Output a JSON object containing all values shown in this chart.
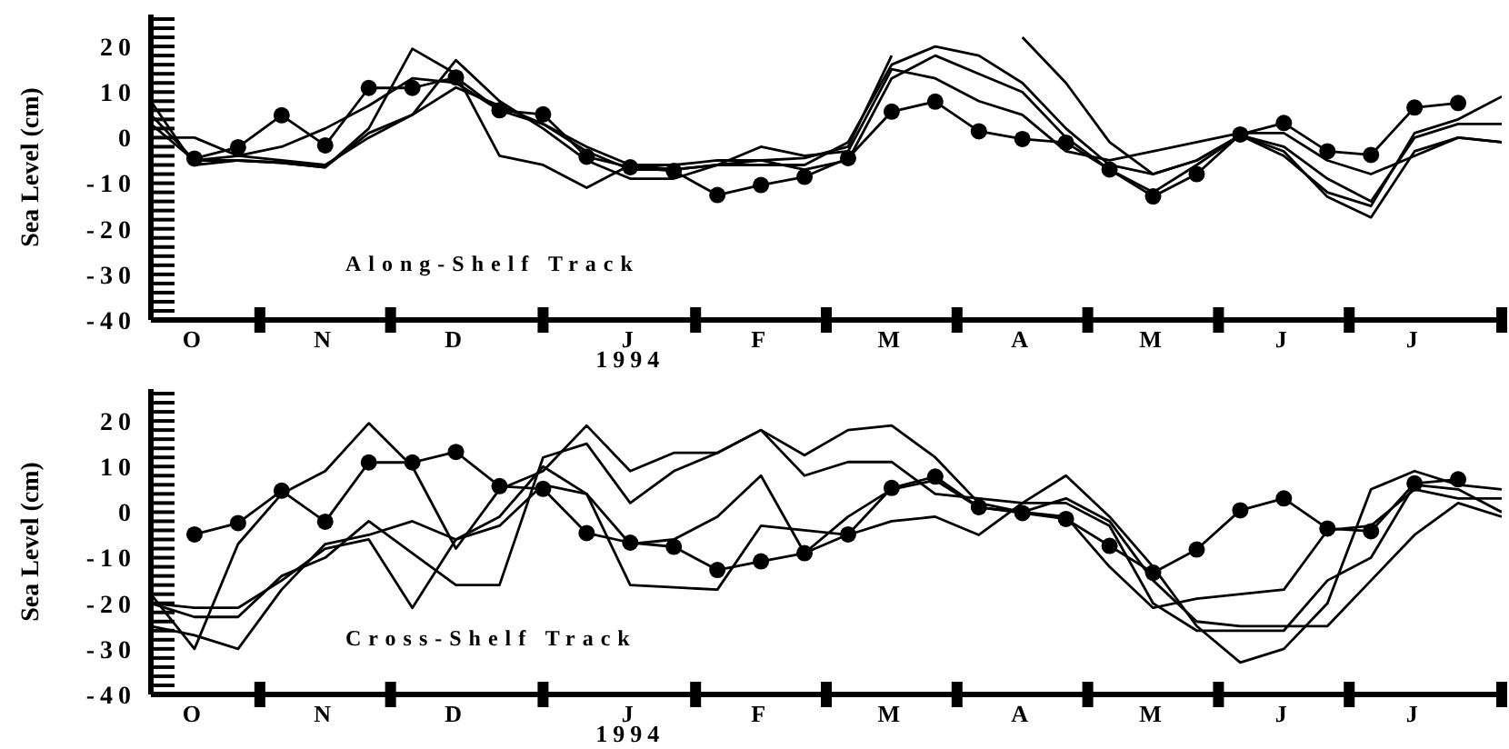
{
  "chart_data": [
    {
      "type": "line",
      "ylabel": "Sea Level (cm)",
      "annotations": [
        "Along-Shelf Track"
      ],
      "ylim": [
        -40,
        27
      ],
      "categories": [
        null,
        "O",
        null,
        null,
        "N",
        null,
        null,
        "D",
        null,
        null,
        null,
        "J\n1994",
        null,
        null,
        "F",
        null,
        null,
        "M",
        null,
        null,
        "A",
        null,
        null,
        "M",
        null,
        null,
        "J",
        null,
        null,
        "J",
        null,
        null
      ],
      "yticks": [
        -40,
        {
          "value": -38,
          "label": null
        },
        {
          "value": -36,
          "label": null
        },
        {
          "value": -34,
          "label": null
        },
        {
          "value": -32,
          "label": null
        },
        -30,
        {
          "value": -28,
          "label": null
        },
        {
          "value": -26,
          "label": null
        },
        {
          "value": -24,
          "label": null
        },
        {
          "value": -22,
          "label": null
        },
        -20,
        {
          "value": -18,
          "label": null
        },
        {
          "value": -16,
          "label": null
        },
        {
          "value": -14,
          "label": null
        },
        {
          "value": -12,
          "label": null
        },
        -10,
        {
          "value": -8,
          "label": null
        },
        {
          "value": -6,
          "label": null
        },
        {
          "value": -4,
          "label": null
        },
        {
          "value": -2,
          "label": null
        },
        0,
        {
          "value": 2,
          "label": null
        },
        {
          "value": 4,
          "label": null
        },
        {
          "value": 6,
          "label": null
        },
        {
          "value": 8,
          "label": null
        },
        10,
        {
          "value": 12,
          "label": null
        },
        {
          "value": 14,
          "label": null
        },
        {
          "value": 16,
          "label": null
        },
        {
          "value": 18,
          "label": null
        },
        20,
        {
          "value": 22,
          "label": null
        },
        {
          "value": 24,
          "label": null
        },
        {
          "value": 26,
          "label": null
        }
      ],
      "series": [
        {
          "color": "#000000",
          "marker": "circle",
          "values": [
            null,
            -4.6,
            -2.1,
            4.9,
            -1.7,
            10.9,
            10.9,
            13.2,
            6.0,
            5.1,
            -4.2,
            -6.5,
            -7.3,
            -12.6,
            -10.4,
            -8.6,
            -4.5,
            5.7,
            7.9,
            1.4,
            -0.3,
            -1.1,
            -7,
            -12.9,
            -8.0,
            0.7,
            3.2,
            -3.0,
            -3.8,
            6.6,
            7.6,
            null
          ]
        },
        {
          "color": "#000000",
          "values": [
            8,
            -6,
            -5,
            -5.5,
            -6.5,
            2,
            19.5,
            14,
            -4,
            -6,
            -11,
            -6,
            -6,
            -5,
            -5,
            -4.5,
            -2,
            18,
            null,
            null,
            22,
            12,
            -1,
            -8,
            -5,
            0.5,
            -3,
            -13,
            -17.5,
            -3,
            0,
            -1
          ]
        },
        {
          "color": "#000000",
          "values": [
            3,
            -5,
            -5,
            -5.5,
            -6.5,
            1,
            5,
            17,
            8,
            2,
            -5,
            -9,
            -9,
            -6,
            -6,
            -6,
            -1,
            16,
            20,
            18,
            12,
            2,
            -6,
            -8,
            -5,
            0.5,
            -4,
            -12,
            -15,
            1,
            4,
            9
          ]
        },
        {
          "color": "#000000",
          "values": [
            5,
            -5,
            -4,
            -2,
            2,
            7,
            13,
            12,
            6,
            3,
            -3,
            -7,
            -7,
            -6,
            -5,
            -7,
            -5,
            13,
            18,
            14,
            10,
            0,
            -7,
            -12,
            -6,
            0.5,
            -2,
            -9,
            -14,
            0,
            3,
            3
          ]
        },
        {
          "color": "#000000",
          "values": [
            0,
            0,
            -4,
            -5,
            -6,
            0,
            5,
            11,
            7,
            3,
            -2,
            -6,
            -7,
            -6,
            -2,
            -4,
            -3,
            15,
            13,
            8,
            5,
            -3,
            -5,
            -3,
            -1,
            1,
            1,
            -5,
            -8,
            -4,
            0,
            -1
          ]
        }
      ]
    },
    {
      "type": "line",
      "ylabel": "Sea Level (cm)",
      "annotations": [
        "Cross-Shelf Track"
      ],
      "ylim": [
        -40,
        27
      ],
      "categories": [
        null,
        "O",
        null,
        null,
        "N",
        null,
        null,
        "D",
        null,
        null,
        null,
        "J\n1994",
        null,
        null,
        "F",
        null,
        null,
        "M",
        null,
        null,
        "A",
        null,
        null,
        "M",
        null,
        null,
        "J",
        null,
        null,
        "J",
        null,
        null
      ],
      "yticks": [
        -40,
        {
          "value": -38,
          "label": null
        },
        {
          "value": -36,
          "label": null
        },
        {
          "value": -34,
          "label": null
        },
        {
          "value": -32,
          "label": null
        },
        -30,
        {
          "value": -28,
          "label": null
        },
        {
          "value": -26,
          "label": null
        },
        {
          "value": -24,
          "label": null
        },
        {
          "value": -22,
          "label": null
        },
        -20,
        {
          "value": -18,
          "label": null
        },
        {
          "value": -16,
          "label": null
        },
        {
          "value": -14,
          "label": null
        },
        {
          "value": -12,
          "label": null
        },
        -10,
        {
          "value": -8,
          "label": null
        },
        {
          "value": -6,
          "label": null
        },
        {
          "value": -4,
          "label": null
        },
        {
          "value": -2,
          "label": null
        },
        0,
        {
          "value": 2,
          "label": null
        },
        {
          "value": 4,
          "label": null
        },
        {
          "value": 6,
          "label": null
        },
        {
          "value": 8,
          "label": null
        },
        10,
        {
          "value": 12,
          "label": null
        },
        {
          "value": 14,
          "label": null
        },
        {
          "value": 16,
          "label": null
        },
        {
          "value": 18,
          "label": null
        },
        20,
        {
          "value": 22,
          "label": null
        },
        {
          "value": 24,
          "label": null
        },
        {
          "value": 26,
          "label": null
        }
      ],
      "series": [
        {
          "color": "#000000",
          "marker": "circle",
          "values": [
            null,
            -4.9,
            -2.4,
            4.7,
            -2.1,
            10.9,
            10.9,
            13.2,
            5.7,
            5.1,
            -4.6,
            -6.7,
            -7.6,
            -12.7,
            -10.8,
            -9.0,
            -4.9,
            5.3,
            7.8,
            1.1,
            -0.2,
            -1.5,
            -7.4,
            -13.3,
            -8.2,
            0.4,
            3.0,
            -3.6,
            -4.2,
            6.3,
            7.2,
            null
          ]
        },
        {
          "color": "#000000",
          "values": [
            -20,
            -21,
            -21,
            -15,
            -8,
            -6,
            -21,
            -6,
            -1,
            10,
            4,
            -7,
            -6,
            -1,
            8,
            -9,
            -1,
            5,
            7,
            1,
            0,
            -1,
            -12,
            -21,
            -19,
            -18,
            -17,
            -4,
            -3,
            5,
            3,
            3
          ]
        },
        {
          "color": "#000000",
          "values": [
            -18,
            -30,
            -7,
            4,
            9,
            19.5,
            10,
            -8,
            5,
            9,
            19,
            9,
            13,
            13,
            18,
            12.5,
            18,
            19,
            12,
            2,
            0,
            3,
            -2,
            -15,
            -24,
            -25,
            -25,
            -25,
            -15,
            -5,
            2,
            -1
          ]
        },
        {
          "color": "#000000",
          "values": [
            -20,
            -23,
            -23,
            -14,
            -10,
            -2,
            -9,
            -16,
            -16,
            12,
            15,
            2,
            9,
            13,
            18,
            8,
            11,
            11,
            4,
            3,
            2,
            2,
            -3,
            -20,
            -26,
            -26,
            -26,
            -15,
            -10,
            6,
            5,
            0
          ]
        },
        {
          "color": "#000000",
          "values": [
            -25,
            -27,
            -30,
            -17,
            -7,
            -5,
            -2,
            -6,
            -3,
            6,
            4,
            -16,
            -16.5,
            -17,
            -3,
            -4,
            -5,
            -2,
            -1,
            -5,
            2,
            8,
            -1,
            -12,
            -25,
            -33,
            -30,
            -20,
            5,
            9,
            6,
            5
          ]
        }
      ]
    }
  ]
}
